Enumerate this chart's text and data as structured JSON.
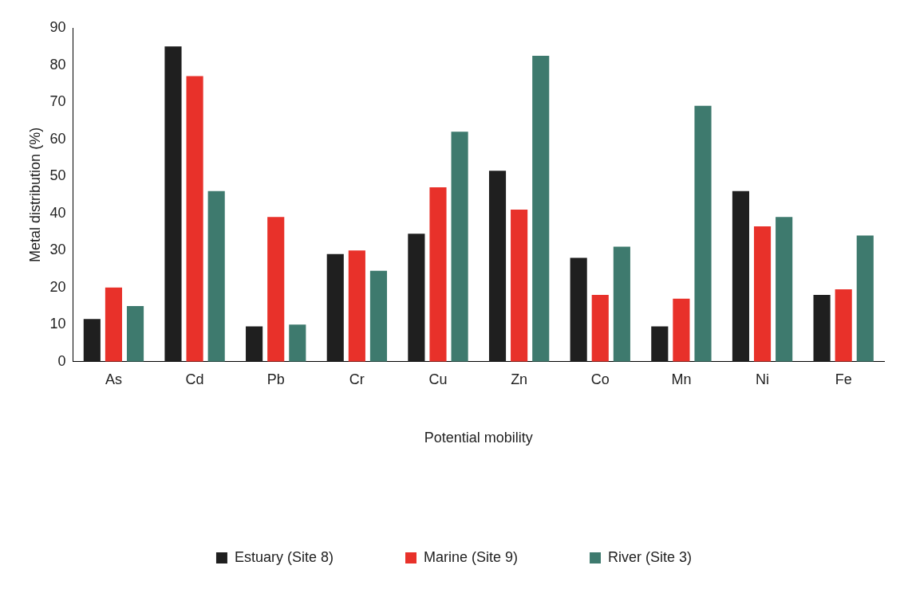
{
  "chart_data": {
    "type": "bar",
    "xlabel": "Potential mobility",
    "ylabel": "Metal distribution (%)",
    "categories": [
      "As",
      "Cd",
      "Pb",
      "Cr",
      "Cu",
      "Zn",
      "Co",
      "Mn",
      "Ni",
      "Fe"
    ],
    "series": [
      {
        "name": "Estuary (Site 8)",
        "color": "#1f1f1f",
        "values": [
          11.5,
          85,
          9.5,
          29,
          34.5,
          51.5,
          28,
          9.5,
          46,
          18
        ]
      },
      {
        "name": "Marine (Site 9)",
        "color": "#e8312a",
        "values": [
          20,
          77,
          39,
          30,
          47,
          41,
          18,
          17,
          36.5,
          19.5
        ]
      },
      {
        "name": "River (Site 3)",
        "color": "#3e7a6e",
        "values": [
          15,
          46,
          10,
          24.5,
          62,
          82.5,
          31,
          69,
          39,
          34
        ]
      }
    ],
    "ylim": [
      0,
      90
    ],
    "yticks": [
      0,
      10,
      20,
      30,
      40,
      50,
      60,
      70,
      80,
      90
    ],
    "grid": false,
    "legend": "bottom"
  }
}
